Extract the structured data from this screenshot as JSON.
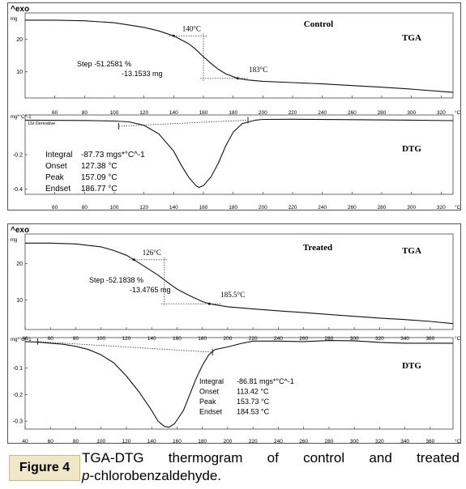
{
  "chart_data": [
    {
      "panel": "control",
      "type": "line",
      "exo_label": "^exo",
      "sample_label": "Control",
      "tga": {
        "label": "TGA",
        "y_unit": "mg",
        "yticks": [
          10,
          20
        ],
        "ylim": [
          2,
          28
        ],
        "xlim": [
          40,
          328
        ],
        "xticks": [
          60,
          80,
          100,
          120,
          140,
          160,
          180,
          200,
          220,
          240,
          260,
          280,
          300,
          320
        ],
        "x_unit": "°C",
        "x": [
          40,
          60,
          80,
          100,
          120,
          130,
          140,
          150,
          155,
          160,
          165,
          170,
          175,
          183,
          190,
          200,
          220,
          240,
          260,
          280,
          300,
          320,
          328
        ],
        "y": [
          25.8,
          25.8,
          25.6,
          25.0,
          23.6,
          22.5,
          21.0,
          18.6,
          16.8,
          14.6,
          12.6,
          10.8,
          9.4,
          8.0,
          7.5,
          7.1,
          6.7,
          6.3,
          5.8,
          5.3,
          4.7,
          4.0,
          3.7
        ],
        "annotations": {
          "onset_label": "140°C",
          "endset_label": "183°C",
          "step_lines": [
            "Step  -51.2581 %",
            "-13.1533 mg"
          ]
        }
      },
      "dtg": {
        "label": "DTG",
        "y_unit": "mg*°C^-1",
        "curve_label": "1St Derivative",
        "yticks": [
          -0.2,
          -0.4
        ],
        "ylim": [
          -0.43,
          0.03
        ],
        "xlim": [
          40,
          328
        ],
        "xticks": [
          60,
          80,
          100,
          120,
          140,
          160,
          180,
          200,
          220,
          240,
          260,
          280,
          300,
          320
        ],
        "x": [
          40,
          80,
          100,
          110,
          120,
          130,
          140,
          145,
          150,
          155,
          157,
          160,
          165,
          170,
          175,
          180,
          186,
          195,
          200,
          220,
          260,
          300,
          328
        ],
        "y": [
          0.0,
          -0.002,
          -0.005,
          -0.01,
          -0.03,
          -0.08,
          -0.18,
          -0.26,
          -0.33,
          -0.38,
          -0.39,
          -0.38,
          -0.33,
          -0.25,
          -0.15,
          -0.07,
          -0.02,
          0.0,
          0.004,
          0.005,
          0.003,
          0.0,
          -0.003
        ],
        "baseline": {
          "x": [
            103,
            190
          ],
          "y": [
            -0.035,
            0.0
          ]
        },
        "results": [
          {
            "label": "Integral",
            "value": "-87.73 mgs*°C^-1"
          },
          {
            "label": "Onset",
            "value": "127.38 °C"
          },
          {
            "label": "Peak",
            "value": "157.09 °C"
          },
          {
            "label": "Endset",
            "value": "186.77 °C"
          }
        ]
      }
    },
    {
      "panel": "treated",
      "type": "line",
      "exo_label": "^exo",
      "sample_label": "Treated",
      "tga": {
        "label": "TGA",
        "y_unit": "mg",
        "yticks": [
          10,
          20
        ],
        "ylim": [
          2,
          28
        ],
        "xlim": [
          40,
          378
        ],
        "xticks": [
          40,
          60,
          80,
          100,
          120,
          140,
          160,
          180,
          200,
          220,
          240,
          260,
          280,
          300,
          320,
          340,
          360
        ],
        "x_unit": "°C",
        "x": [
          40,
          60,
          80,
          100,
          110,
          120,
          126,
          135,
          145,
          150,
          155,
          160,
          170,
          180,
          185.5,
          200,
          220,
          240,
          260,
          280,
          300,
          320,
          340,
          360,
          378
        ],
        "y": [
          25.5,
          25.5,
          25.3,
          24.5,
          23.5,
          22.2,
          21.0,
          19.0,
          16.8,
          15.5,
          14.2,
          13.0,
          11.2,
          9.6,
          9.0,
          8.2,
          7.6,
          7.1,
          6.6,
          6.1,
          5.6,
          5.1,
          4.7,
          4.2,
          3.6
        ],
        "annotations": {
          "onset_label": "126°C",
          "endset_label": "185.5°C",
          "step_lines": [
            "Step  -52.1838 %",
            "-13.4765 mg"
          ]
        }
      },
      "dtg": {
        "label": "DTG",
        "y_unit": "mg*°C^-1",
        "yticks": [
          -0.1,
          -0.2,
          -0.3
        ],
        "ylim": [
          -0.33,
          0.015
        ],
        "xlim": [
          40,
          378
        ],
        "xticks": [
          40,
          60,
          80,
          100,
          120,
          140,
          160,
          180,
          200,
          220,
          240,
          260,
          280,
          300,
          320,
          340,
          360
        ],
        "x": [
          40,
          50,
          60,
          70,
          80,
          90,
          100,
          110,
          120,
          130,
          140,
          145,
          150,
          153.7,
          158,
          165,
          170,
          175,
          180,
          185,
          190,
          200,
          210,
          220,
          240,
          260,
          280,
          300,
          320,
          340,
          360,
          378
        ],
        "y": [
          0.0,
          -0.002,
          -0.006,
          -0.01,
          -0.018,
          -0.03,
          -0.05,
          -0.08,
          -0.13,
          -0.19,
          -0.26,
          -0.3,
          -0.32,
          -0.323,
          -0.31,
          -0.26,
          -0.2,
          -0.14,
          -0.09,
          -0.05,
          -0.03,
          -0.02,
          -0.008,
          0.002,
          0.002,
          0.0,
          0.004,
          0.003,
          -0.003,
          -0.006,
          -0.006,
          -0.006
        ],
        "baseline": {
          "x": [
            50,
            188
          ],
          "y": [
            0.0,
            -0.04
          ]
        },
        "results": [
          {
            "label": "Integral",
            "value": "-86.81 mgs*°C^-1"
          },
          {
            "label": "Onset",
            "value": "113.42 °C"
          },
          {
            "label": "Peak",
            "value": "153.73 °C"
          },
          {
            "label": "Endset",
            "value": "184.53 °C"
          }
        ]
      }
    }
  ],
  "caption": {
    "label": "Figure 4",
    "line1_words": [
      "TGA-DTG",
      "thermogram",
      "of",
      "control",
      "and",
      "treated"
    ],
    "line2_italic": "p",
    "line2_rest": "-chlorobenzaldehyde."
  }
}
